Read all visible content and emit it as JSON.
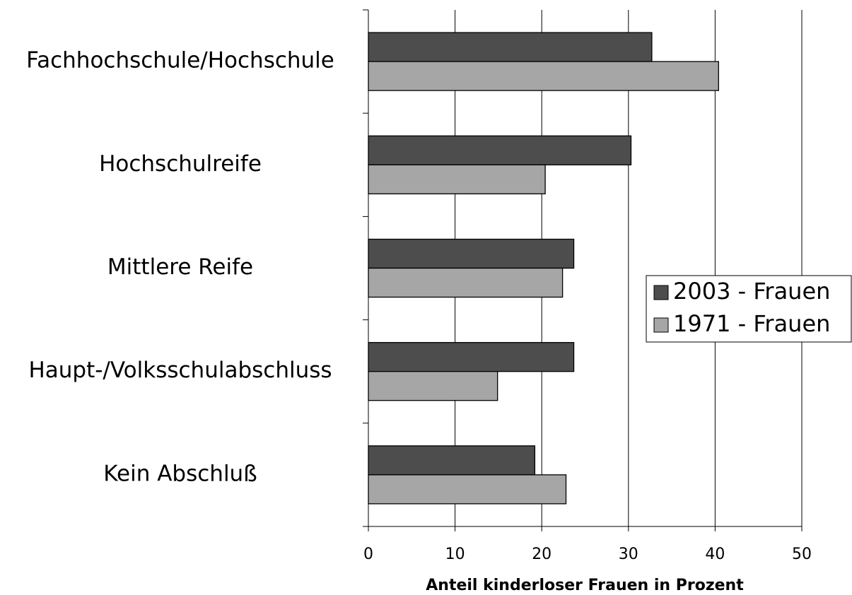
{
  "chart_data": {
    "type": "barh",
    "xlabel": "Anteil kinderloser Frauen in Prozent",
    "categories": [
      "Fachhochschule/Hochschule",
      "Hochschulreife",
      "Mittlere Reife",
      "Haupt-/Volksschulabschluss",
      "Kein Abschluß"
    ],
    "series": [
      {
        "name": "2003 - Frauen",
        "color": "#4d4d4d",
        "values": [
          32.7,
          30.3,
          23.7,
          23.7,
          19.2
        ]
      },
      {
        "name": "1971 - Frauen",
        "color": "#a6a6a6",
        "values": [
          40.4,
          20.4,
          22.4,
          14.9,
          22.8
        ]
      }
    ],
    "xlim": [
      0,
      50
    ],
    "xticks": [
      0,
      10,
      20,
      30,
      40,
      50
    ],
    "grid": true,
    "legend": "right"
  }
}
